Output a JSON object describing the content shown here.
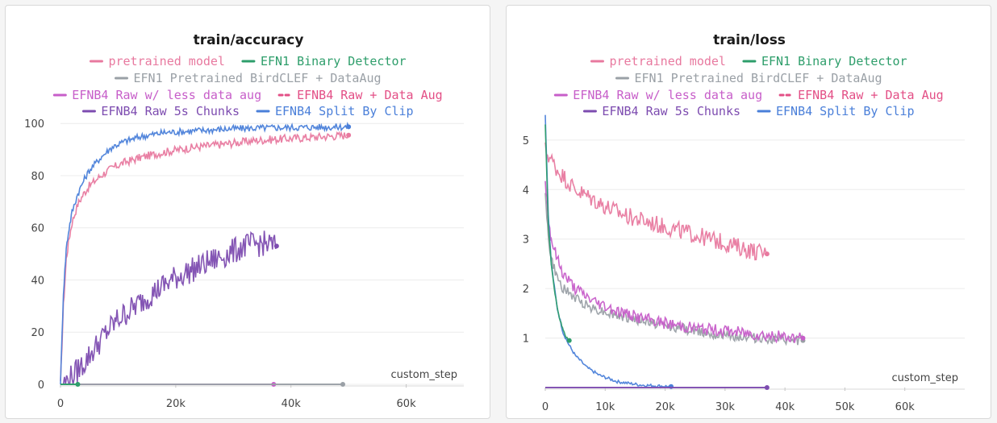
{
  "colors": {
    "pretrained_model": "#e8799f",
    "efn1_binary": "#2e9e6b",
    "efn1_pretrained": "#9aa0a6",
    "efnb4_less_aug": "#c75ec9",
    "efnb4_raw_aug": "#e34f86",
    "efnb4_5s": "#7d4cb0",
    "efnb4_split": "#4a7fd9"
  },
  "chart_data": [
    {
      "type": "line",
      "title": "train/accuracy",
      "xlabel": "custom_step",
      "ylabel": "",
      "xlim": [
        0,
        70000
      ],
      "ylim": [
        0,
        105
      ],
      "xticks": [
        0,
        20000,
        40000,
        60000
      ],
      "xtick_labels": [
        "0",
        "20k",
        "40k",
        "60k"
      ],
      "yticks": [
        0,
        20,
        40,
        60,
        80,
        100
      ],
      "ytick_labels": [
        "0",
        "20",
        "40",
        "60",
        "80",
        "100"
      ],
      "legend": [
        {
          "label": "pretrained model",
          "color_key": "pretrained_model",
          "style": "solid"
        },
        {
          "label": "EFN1 Binary Detector",
          "color_key": "efn1_binary",
          "style": "solid"
        },
        {
          "label": "EFN1 Pretrained BirdCLEF + DataAug",
          "color_key": "efn1_pretrained",
          "style": "solid"
        },
        {
          "label": "EFNB4 Raw w/ less data aug",
          "color_key": "efnb4_less_aug",
          "style": "solid"
        },
        {
          "label": "EFNB4 Raw + Data Aug",
          "color_key": "efnb4_raw_aug",
          "style": "dashed"
        },
        {
          "label": "EFNB4 Raw 5s Chunks",
          "color_key": "efnb4_5s",
          "style": "solid"
        },
        {
          "label": "EFNB4 Split By Clip",
          "color_key": "efnb4_split",
          "style": "solid"
        }
      ],
      "series": [
        {
          "name": "pretrained model",
          "color_key": "pretrained_model",
          "x": [
            0,
            500,
            1000,
            1500,
            2000,
            3000,
            4000,
            5000,
            7000,
            9000,
            11000,
            14000,
            18000,
            22000,
            26000,
            30000,
            34000,
            38000,
            42000,
            46000,
            50000
          ],
          "y": [
            0,
            30,
            48,
            56,
            62,
            69,
            73,
            76,
            80,
            83,
            85,
            87,
            89,
            90.5,
            91.5,
            92.5,
            93.5,
            94,
            94.5,
            95,
            95.5
          ],
          "noise": 1.6
        },
        {
          "name": "EFNB4 Split By Clip",
          "color_key": "efnb4_split",
          "x": [
            0,
            500,
            1000,
            1500,
            2000,
            3000,
            4000,
            5000,
            7000,
            9000,
            11000,
            14000,
            18000,
            22000,
            26000,
            30000,
            34000,
            38000,
            42000,
            46000,
            50000
          ],
          "y": [
            0,
            35,
            52,
            60,
            66,
            73,
            78,
            82,
            87,
            91,
            93,
            95,
            96.5,
            97,
            97.5,
            98,
            98.2,
            98.4,
            98.5,
            98.6,
            98.7
          ],
          "noise": 1.3
        },
        {
          "name": "EFNB4 Raw 5s Chunks",
          "color_key": "efnb4_5s",
          "x": [
            500,
            2000,
            4000,
            6000,
            8000,
            10000,
            13000,
            16000,
            20000,
            24000,
            28000,
            32000,
            35000,
            37500
          ],
          "y": [
            0,
            3,
            8,
            14,
            20,
            25,
            30,
            35,
            41,
            45,
            49,
            53,
            54,
            53
          ],
          "noise": 5
        },
        {
          "name": "EFNB4 Raw w/ less data aug",
          "color_key": "efnb4_less_aug",
          "x": [
            0,
            37000
          ],
          "y": [
            0,
            0
          ],
          "noise": 0
        },
        {
          "name": "EFN1 Pretrained BirdCLEF + DataAug",
          "color_key": "efn1_pretrained",
          "x": [
            0,
            49000
          ],
          "y": [
            0,
            0
          ],
          "noise": 0
        },
        {
          "name": "EFN1 Binary Detector",
          "color_key": "efn1_binary",
          "x": [
            0,
            3000
          ],
          "y": [
            0,
            0
          ],
          "noise": 0
        }
      ]
    },
    {
      "type": "line",
      "title": "train/loss",
      "xlabel": "custom_step",
      "ylabel": "",
      "xlim": [
        0,
        70000
      ],
      "ylim": [
        0,
        5.6
      ],
      "xticks": [
        0,
        10000,
        20000,
        30000,
        40000,
        50000,
        60000
      ],
      "xtick_labels": [
        "0",
        "10k",
        "20k",
        "30k",
        "40k",
        "50k",
        "60k"
      ],
      "yticks": [
        1,
        2,
        3,
        4,
        5
      ],
      "ytick_labels": [
        "1",
        "2",
        "3",
        "4",
        "5"
      ],
      "legend": [
        {
          "label": "pretrained model",
          "color_key": "pretrained_model",
          "style": "solid"
        },
        {
          "label": "EFN1 Binary Detector",
          "color_key": "efn1_binary",
          "style": "solid"
        },
        {
          "label": "EFN1 Pretrained BirdCLEF + DataAug",
          "color_key": "efn1_pretrained",
          "style": "solid"
        },
        {
          "label": "EFNB4 Raw w/ less data aug",
          "color_key": "efnb4_less_aug",
          "style": "solid"
        },
        {
          "label": "EFNB4 Raw + Data Aug",
          "color_key": "efnb4_raw_aug",
          "style": "dashed"
        },
        {
          "label": "EFNB4 Raw 5s Chunks",
          "color_key": "efnb4_5s",
          "style": "solid"
        },
        {
          "label": "EFNB4 Split By Clip",
          "color_key": "efnb4_split",
          "style": "solid"
        }
      ],
      "series": [
        {
          "name": "pretrained model",
          "color_key": "pretrained_model",
          "x": [
            0,
            2000,
            5000,
            8000,
            11000,
            14000,
            17000,
            20000,
            23000,
            26000,
            29000,
            32000,
            35000,
            37000
          ],
          "y": [
            4.8,
            4.4,
            4.0,
            3.8,
            3.6,
            3.45,
            3.35,
            3.25,
            3.15,
            3.05,
            2.95,
            2.85,
            2.75,
            2.7
          ],
          "noise": 0.18
        },
        {
          "name": "EFN1 Pretrained BirdCLEF + DataAug",
          "color_key": "efn1_pretrained",
          "x": [
            0,
            500,
            1000,
            2000,
            3000,
            5000,
            8000,
            12000,
            16000,
            20000,
            25000,
            30000,
            35000,
            40000,
            43000
          ],
          "y": [
            4.0,
            3.0,
            2.6,
            2.2,
            2.0,
            1.8,
            1.6,
            1.45,
            1.35,
            1.25,
            1.15,
            1.05,
            1.0,
            0.95,
            0.95
          ],
          "noise": 0.1
        },
        {
          "name": "EFNB4 Raw w/ less data aug",
          "color_key": "efnb4_less_aug",
          "x": [
            0,
            500,
            1000,
            2000,
            3000,
            5000,
            8000,
            12000,
            16000,
            20000,
            25000,
            30000,
            35000,
            40000,
            43000
          ],
          "y": [
            4.2,
            3.4,
            3.0,
            2.6,
            2.3,
            2.0,
            1.75,
            1.55,
            1.4,
            1.3,
            1.2,
            1.15,
            1.08,
            1.02,
            1.0
          ],
          "noise": 0.12
        },
        {
          "name": "EFNB4 Split By Clip",
          "color_key": "efnb4_split",
          "x": [
            0,
            500,
            1000,
            2000,
            3000,
            4000,
            5000,
            7000,
            9000,
            12000,
            16000,
            21000
          ],
          "y": [
            5.5,
            3.5,
            2.5,
            1.6,
            1.1,
            0.85,
            0.65,
            0.4,
            0.25,
            0.12,
            0.05,
            0.02
          ],
          "noise": 0.03
        },
        {
          "name": "EFN1 Binary Detector",
          "color_key": "efn1_binary",
          "x": [
            0,
            500,
            1000,
            1500,
            2000,
            2500,
            3000,
            3500,
            4000
          ],
          "y": [
            5.3,
            3.3,
            2.5,
            2.0,
            1.6,
            1.35,
            1.15,
            1.02,
            0.95
          ],
          "noise": 0.02
        },
        {
          "name": "EFNB4 Raw 5s Chunks",
          "color_key": "efnb4_5s",
          "x": [
            0,
            37000
          ],
          "y": [
            0,
            0
          ],
          "noise": 0
        }
      ]
    }
  ]
}
